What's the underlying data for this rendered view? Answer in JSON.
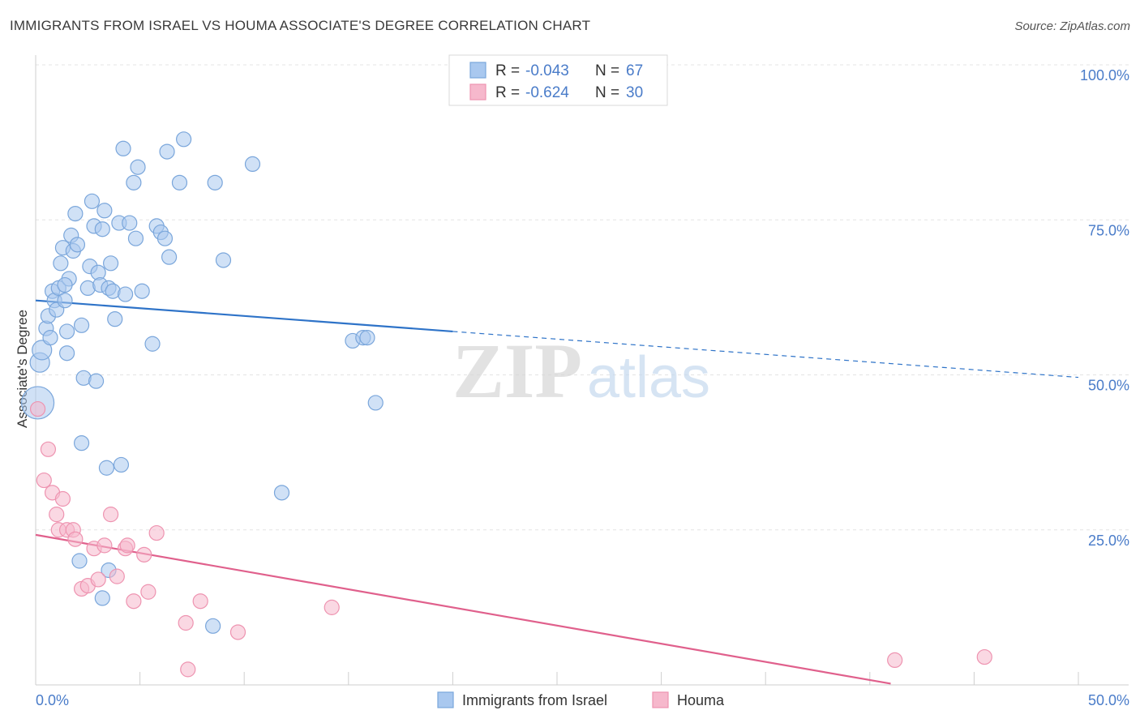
{
  "title": "IMMIGRANTS FROM ISRAEL VS HOUMA ASSOCIATE'S DEGREE CORRELATION CHART",
  "source": "Source: ZipAtlas.com",
  "watermark": {
    "zip": "ZIP",
    "atlas": "atlas"
  },
  "colors": {
    "blue_fill": "#a9c8ef",
    "blue_stroke": "#7aa6db",
    "blue_line": "#2e73c8",
    "pink_fill": "#f6b8cc",
    "pink_stroke": "#ee93b0",
    "pink_line": "#e0608c",
    "axis_label": "#4a7cc9",
    "grid": "#e4e4e4"
  },
  "legend": {
    "rows": [
      {
        "r_label": "R =",
        "r_value": "-0.043",
        "n_label": "N =",
        "n_value": "67",
        "series": "blue"
      },
      {
        "r_label": "R =",
        "r_value": "-0.624",
        "n_label": "N =",
        "n_value": "30",
        "series": "pink"
      }
    ]
  },
  "chart_data": {
    "type": "scatter",
    "xlabel": "",
    "ylabel": "Associate's Degree",
    "xlim": [
      0,
      50
    ],
    "ylim": [
      0,
      100
    ],
    "x_tick_labels": [
      "0.0%",
      "50.0%"
    ],
    "y_tick_labels": [
      "100.0%",
      "75.0%",
      "50.0%",
      "25.0%"
    ],
    "y_ticks": [
      100,
      75,
      50,
      25
    ],
    "grid": true,
    "legend_position": "bottom",
    "series": [
      {
        "name": "Immigrants from Israel",
        "color": "blue",
        "trend": {
          "x0": 0,
          "y0": 62.0,
          "x1": 20,
          "y1": 57.0,
          "dashed_to_x": 50,
          "dashed_to_y": 49.6
        },
        "points": [
          [
            0.2,
            52.0
          ],
          [
            0.3,
            54.0
          ],
          [
            0.5,
            57.5
          ],
          [
            0.6,
            59.5
          ],
          [
            0.7,
            56.0
          ],
          [
            0.8,
            63.5
          ],
          [
            0.9,
            62.0
          ],
          [
            1.0,
            60.5
          ],
          [
            1.1,
            64.0
          ],
          [
            1.2,
            68.0
          ],
          [
            1.3,
            70.5
          ],
          [
            1.4,
            62.0
          ],
          [
            1.5,
            57.0
          ],
          [
            1.5,
            53.5
          ],
          [
            1.6,
            65.5
          ],
          [
            1.7,
            72.5
          ],
          [
            1.8,
            70.0
          ],
          [
            1.9,
            76.0
          ],
          [
            2.0,
            71.0
          ],
          [
            2.2,
            58.0
          ],
          [
            2.3,
            49.5
          ],
          [
            2.5,
            64.0
          ],
          [
            2.6,
            67.5
          ],
          [
            2.7,
            78.0
          ],
          [
            2.8,
            74.0
          ],
          [
            3.0,
            66.5
          ],
          [
            3.1,
            64.5
          ],
          [
            3.2,
            73.5
          ],
          [
            3.3,
            76.5
          ],
          [
            3.5,
            64.0
          ],
          [
            3.6,
            68.0
          ],
          [
            3.7,
            63.5
          ],
          [
            2.9,
            49.0
          ],
          [
            3.8,
            59.0
          ],
          [
            4.0,
            74.5
          ],
          [
            4.2,
            86.5
          ],
          [
            4.3,
            63.0
          ],
          [
            4.5,
            74.5
          ],
          [
            4.7,
            81.0
          ],
          [
            4.8,
            72.0
          ],
          [
            4.9,
            83.5
          ],
          [
            5.1,
            63.5
          ],
          [
            5.6,
            55.0
          ],
          [
            5.8,
            74.0
          ],
          [
            6.0,
            73.0
          ],
          [
            6.2,
            72.0
          ],
          [
            6.4,
            69.0
          ],
          [
            6.3,
            86.0
          ],
          [
            6.9,
            81.0
          ],
          [
            7.1,
            88.0
          ],
          [
            8.6,
            81.0
          ],
          [
            9.0,
            68.5
          ],
          [
            10.4,
            84.0
          ],
          [
            15.2,
            55.5
          ],
          [
            15.7,
            56.0
          ],
          [
            16.3,
            45.5
          ],
          [
            0.1,
            45.5
          ],
          [
            2.2,
            39.0
          ],
          [
            3.4,
            35.0
          ],
          [
            4.1,
            35.5
          ],
          [
            11.8,
            31.0
          ],
          [
            2.1,
            20.0
          ],
          [
            3.5,
            18.5
          ],
          [
            3.2,
            14.0
          ],
          [
            8.5,
            9.5
          ],
          [
            1.4,
            64.5
          ],
          [
            15.9,
            56.0
          ]
        ]
      },
      {
        "name": "Houma",
        "color": "pink",
        "trend": {
          "x0": 0,
          "y0": 24.2,
          "x1": 41,
          "y1": 0.2
        },
        "points": [
          [
            0.1,
            44.5
          ],
          [
            0.6,
            38.0
          ],
          [
            0.4,
            33.0
          ],
          [
            0.8,
            31.0
          ],
          [
            1.0,
            27.5
          ],
          [
            1.3,
            30.0
          ],
          [
            1.1,
            25.0
          ],
          [
            1.5,
            25.0
          ],
          [
            1.8,
            25.0
          ],
          [
            1.9,
            23.5
          ],
          [
            2.2,
            15.5
          ],
          [
            2.5,
            16.0
          ],
          [
            2.8,
            22.0
          ],
          [
            3.0,
            17.0
          ],
          [
            3.3,
            22.5
          ],
          [
            3.6,
            27.5
          ],
          [
            3.9,
            17.5
          ],
          [
            4.3,
            22.0
          ],
          [
            4.4,
            22.5
          ],
          [
            4.7,
            13.5
          ],
          [
            5.2,
            21.0
          ],
          [
            5.4,
            15.0
          ],
          [
            5.8,
            24.5
          ],
          [
            7.2,
            10.0
          ],
          [
            7.9,
            13.5
          ],
          [
            9.7,
            8.5
          ],
          [
            14.2,
            12.5
          ],
          [
            41.2,
            4.0
          ],
          [
            45.5,
            4.5
          ],
          [
            7.3,
            2.5
          ]
        ]
      }
    ]
  },
  "bottom_legend": [
    {
      "label": "Immigrants from Israel",
      "color": "blue"
    },
    {
      "label": "Houma",
      "color": "pink"
    }
  ]
}
